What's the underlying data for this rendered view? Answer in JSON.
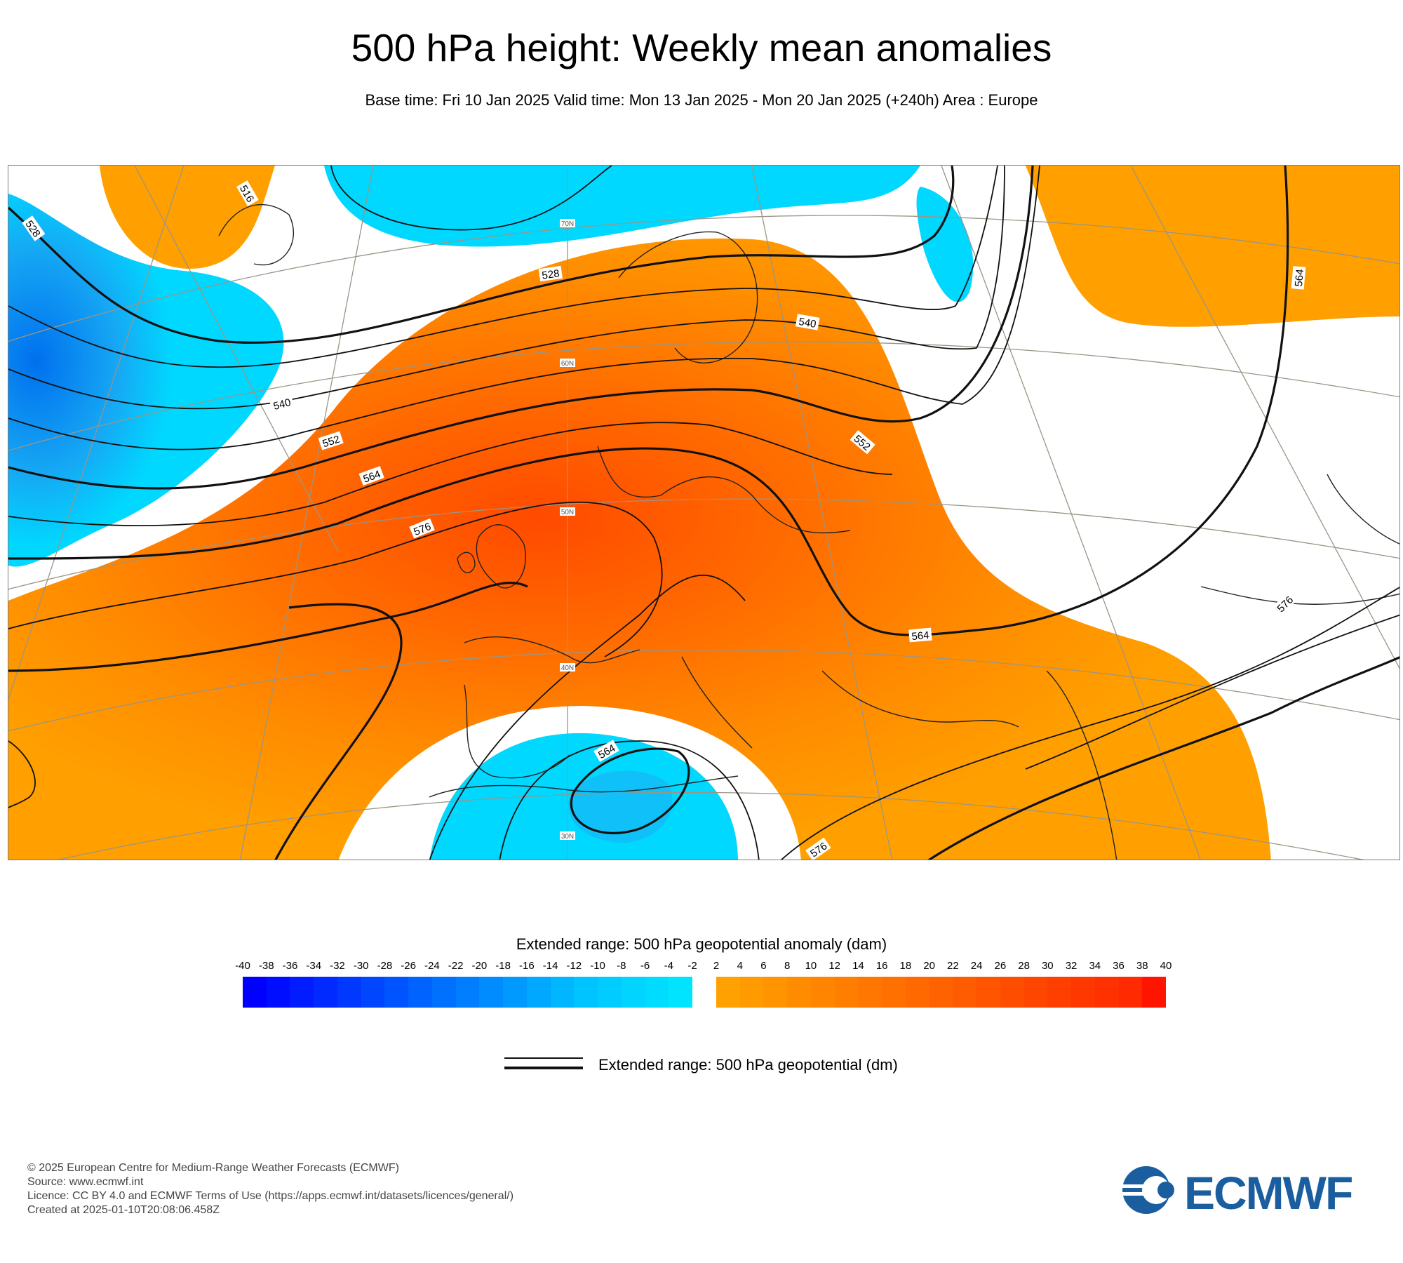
{
  "title": "500 hPa height: Weekly mean anomalies",
  "subtitle": "Base time: Fri 10 Jan 2025 Valid time: Mon 13 Jan 2025 - Mon 20 Jan 2025 (+240h) Area : Europe",
  "map": {
    "contour_labels": [
      "516",
      "528",
      "528",
      "540",
      "540",
      "552",
      "552",
      "564",
      "576",
      "564",
      "564",
      "576",
      "576",
      "564"
    ],
    "latitude_labels": [
      "70N",
      "60N",
      "50N",
      "40N",
      "30N"
    ],
    "colors": {
      "negative_light": "#00e0ff",
      "negative_mid": "#1aa8f2",
      "negative_deep": "#0077ee",
      "positive_light": "#ffa000",
      "positive_mid": "#ff7a00",
      "positive_deep": "#ff4d00"
    }
  },
  "colorbar": {
    "title": "Extended range: 500 hPa geopotential anomaly (dam)",
    "ticks": [
      "-40",
      "-38",
      "-36",
      "-34",
      "-32",
      "-30",
      "-28",
      "-26",
      "-24",
      "-22",
      "-20",
      "-18",
      "-16",
      "-14",
      "-12",
      "-10",
      "-8",
      "-6",
      "-4",
      "-2",
      "2",
      "4",
      "6",
      "8",
      "10",
      "12",
      "14",
      "16",
      "18",
      "20",
      "22",
      "24",
      "26",
      "28",
      "30",
      "32",
      "34",
      "36",
      "38",
      "40"
    ],
    "negative_colors": [
      "#0000ff",
      "#000eff",
      "#001cff",
      "#002aff",
      "#0038ff",
      "#0046ff",
      "#0054ff",
      "#0062ff",
      "#0070ff",
      "#007eff",
      "#008cff",
      "#009aff",
      "#00a8ff",
      "#00b6ff",
      "#00c4ff",
      "#00ccff",
      "#00d4ff",
      "#00dcff",
      "#00e4ff"
    ],
    "positive_colors": [
      "#ffa100",
      "#ff9a00",
      "#ff9300",
      "#ff8c00",
      "#ff8500",
      "#ff7e00",
      "#ff7700",
      "#ff7000",
      "#ff6900",
      "#ff6200",
      "#ff5b00",
      "#ff5400",
      "#ff4d00",
      "#ff4600",
      "#ff3f00",
      "#ff3800",
      "#ff3100",
      "#ff2a00",
      "#ff1400"
    ]
  },
  "legend": {
    "contour_label": "Extended range: 500 hPa geopotential (dm)"
  },
  "footer": {
    "lines": [
      "© 2025 European Centre for Medium-Range Weather Forecasts (ECMWF)",
      "Source: www.ecmwf.int",
      "Licence: CC BY 4.0 and ECMWF Terms of Use (https://apps.ecmwf.int/datasets/licences/general/)",
      "Created at 2025-01-10T20:08:06.458Z"
    ]
  },
  "logo": {
    "text": "ECMWF",
    "icon": "ecmwf-logo-icon",
    "color": "#1a5e9f"
  }
}
